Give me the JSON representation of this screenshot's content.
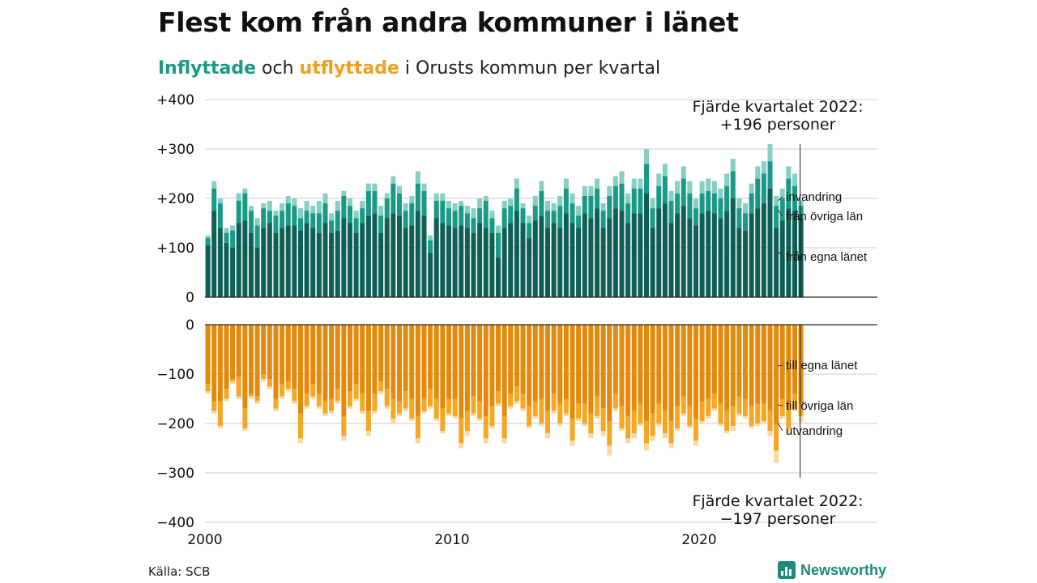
{
  "title": "Flest kom från andra kommuner i länet",
  "subtitle": {
    "part1": "Inflyttade",
    "part2": " och ",
    "part3": "utflyttade",
    "part4": " i Orusts kommun per kvartal"
  },
  "source": "Källa: SCB",
  "brand": "Newsworthy",
  "colors": {
    "in_egna": "#0f5f55",
    "in_ovriga": "#1a9a86",
    "in_invandring": "#86cfc2",
    "out_egna": "#e38a0c",
    "out_ovriga": "#f5a623",
    "out_utvandring": "#f9d9a1",
    "grid": "#dddddd"
  },
  "chart_data": {
    "type": "bar",
    "stacked": true,
    "x_ticks": [
      "2000",
      "2010",
      "2020"
    ],
    "y_ticks_top": [
      "+400",
      "+300",
      "+200",
      "+100",
      "0"
    ],
    "y_ticks_bottom": [
      "0",
      "−100",
      "−200",
      "−300",
      "−400"
    ],
    "ylim_top": [
      0,
      400
    ],
    "ylim_bottom": [
      -400,
      0
    ],
    "annotation_top": [
      "Fjärde kvartalet 2022:",
      "+196 personer"
    ],
    "annotation_bottom": [
      "Fjärde kvartalet 2022:",
      "−197 personer"
    ],
    "legend_top": [
      "invandring",
      "från övriga län",
      "från egna länet"
    ],
    "legend_bottom": [
      "till egna länet",
      "till övriga län",
      "utvandring"
    ],
    "start_period": "2000 Q1",
    "end_period": "2022 Q4",
    "inflow_total": [
      125,
      235,
      200,
      140,
      145,
      210,
      220,
      185,
      160,
      190,
      195,
      175,
      190,
      205,
      200,
      180,
      195,
      185,
      195,
      210,
      170,
      195,
      215,
      200,
      175,
      195,
      230,
      230,
      185,
      210,
      245,
      225,
      190,
      205,
      255,
      230,
      125,
      210,
      210,
      195,
      190,
      195,
      185,
      180,
      200,
      205,
      175,
      145,
      195,
      200,
      240,
      190,
      165,
      205,
      235,
      195,
      190,
      205,
      240,
      210,
      185,
      225,
      225,
      240,
      190,
      225,
      245,
      255,
      210,
      240,
      240,
      300,
      200,
      250,
      270,
      215,
      235,
      265,
      235,
      200,
      235,
      240,
      235,
      220,
      250,
      280,
      200,
      190,
      230,
      265,
      275,
      310,
      205,
      220,
      265,
      250,
      196
    ],
    "inflow_ovriga_top": [
      120,
      220,
      190,
      130,
      135,
      195,
      210,
      175,
      145,
      180,
      175,
      165,
      175,
      190,
      185,
      160,
      175,
      170,
      170,
      190,
      155,
      175,
      205,
      185,
      160,
      180,
      215,
      215,
      165,
      200,
      230,
      210,
      175,
      190,
      230,
      215,
      115,
      195,
      195,
      180,
      175,
      185,
      170,
      160,
      180,
      195,
      160,
      130,
      180,
      185,
      220,
      180,
      150,
      185,
      215,
      175,
      175,
      185,
      220,
      190,
      165,
      205,
      205,
      220,
      175,
      205,
      225,
      230,
      190,
      220,
      220,
      270,
      180,
      225,
      245,
      195,
      210,
      240,
      210,
      180,
      210,
      215,
      210,
      200,
      225,
      255,
      180,
      170,
      210,
      240,
      250,
      275,
      185,
      200,
      240,
      225,
      185
    ],
    "inflow_egna": [
      105,
      175,
      140,
      110,
      100,
      150,
      155,
      130,
      100,
      140,
      150,
      130,
      140,
      145,
      145,
      135,
      150,
      140,
      130,
      150,
      130,
      135,
      160,
      150,
      130,
      150,
      165,
      170,
      130,
      160,
      170,
      165,
      140,
      145,
      175,
      165,
      90,
      160,
      150,
      145,
      140,
      145,
      140,
      130,
      150,
      140,
      130,
      80,
      140,
      150,
      175,
      150,
      120,
      155,
      165,
      140,
      150,
      140,
      170,
      150,
      140,
      170,
      160,
      180,
      140,
      160,
      180,
      175,
      150,
      170,
      170,
      210,
      140,
      180,
      190,
      150,
      170,
      185,
      160,
      145,
      170,
      175,
      170,
      160,
      175,
      200,
      140,
      135,
      170,
      180,
      190,
      220,
      140,
      155,
      180,
      175,
      160
    ],
    "outflow_total": [
      -140,
      -180,
      -210,
      -155,
      -120,
      -150,
      -215,
      -150,
      -160,
      -115,
      -130,
      -175,
      -150,
      -135,
      -160,
      -240,
      -170,
      -150,
      -170,
      -185,
      -180,
      -160,
      -235,
      -170,
      -155,
      -180,
      -225,
      -180,
      -140,
      -170,
      -200,
      -185,
      -175,
      -195,
      -240,
      -180,
      -170,
      -195,
      -220,
      -185,
      -190,
      -250,
      -225,
      -185,
      -195,
      -240,
      -210,
      -165,
      -240,
      -170,
      -160,
      -175,
      -210,
      -190,
      -205,
      -230,
      -180,
      -205,
      -185,
      -245,
      -195,
      -205,
      -230,
      -190,
      -225,
      -265,
      -175,
      -215,
      -240,
      -230,
      -205,
      -255,
      -235,
      -205,
      -230,
      -250,
      -215,
      -185,
      -210,
      -245,
      -200,
      -190,
      -175,
      -205,
      -220,
      -215,
      -185,
      -190,
      -210,
      -205,
      -200,
      -225,
      -280,
      -190,
      -220,
      -175,
      -197
    ],
    "outflow_ovriga_bottom": [
      -135,
      -175,
      -205,
      -150,
      -115,
      -145,
      -210,
      -145,
      -155,
      -110,
      -125,
      -170,
      -145,
      -130,
      -155,
      -230,
      -165,
      -145,
      -165,
      -180,
      -175,
      -155,
      -225,
      -165,
      -150,
      -175,
      -215,
      -175,
      -135,
      -165,
      -190,
      -180,
      -170,
      -190,
      -230,
      -175,
      -165,
      -190,
      -215,
      -180,
      -185,
      -240,
      -215,
      -180,
      -190,
      -230,
      -205,
      -160,
      -230,
      -165,
      -155,
      -170,
      -205,
      -185,
      -200,
      -220,
      -175,
      -200,
      -180,
      -235,
      -190,
      -200,
      -220,
      -185,
      -215,
      -245,
      -170,
      -210,
      -230,
      -220,
      -200,
      -240,
      -225,
      -200,
      -220,
      -240,
      -210,
      -180,
      -205,
      -235,
      -195,
      -185,
      -170,
      -200,
      -215,
      -205,
      -180,
      -185,
      -205,
      -200,
      -195,
      -215,
      -255,
      -185,
      -210,
      -170,
      -185
    ],
    "outflow_egna": [
      -120,
      -155,
      -155,
      -130,
      -110,
      -105,
      -170,
      -140,
      -145,
      -100,
      -110,
      -150,
      -120,
      -115,
      -130,
      -180,
      -140,
      -120,
      -140,
      -155,
      -150,
      -130,
      -185,
      -135,
      -120,
      -140,
      -175,
      -140,
      -115,
      -130,
      -150,
      -155,
      -135,
      -150,
      -185,
      -150,
      -130,
      -150,
      -170,
      -150,
      -150,
      -190,
      -175,
      -145,
      -155,
      -185,
      -165,
      -135,
      -185,
      -140,
      -125,
      -140,
      -165,
      -155,
      -150,
      -175,
      -140,
      -160,
      -150,
      -190,
      -160,
      -160,
      -180,
      -145,
      -170,
      -195,
      -140,
      -165,
      -185,
      -175,
      -160,
      -195,
      -180,
      -160,
      -175,
      -195,
      -165,
      -145,
      -165,
      -190,
      -155,
      -150,
      -140,
      -160,
      -175,
      -165,
      -145,
      -150,
      -165,
      -160,
      -160,
      -175,
      -200,
      -150,
      -170,
      -140,
      -160
    ]
  }
}
